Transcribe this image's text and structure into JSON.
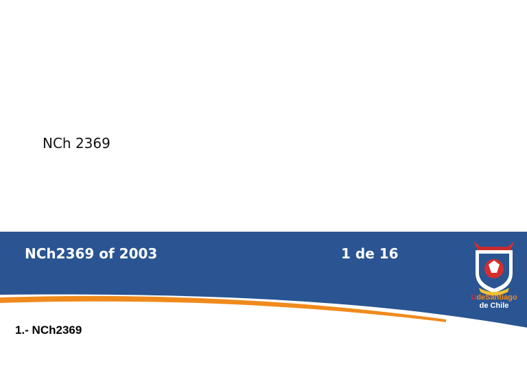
{
  "document": {
    "title": "NCh 2369"
  },
  "banner": {
    "title": "NCh2369 of 2003",
    "page_counter": "1 de 16",
    "background_color": "#2a5592",
    "stripe_color": "#f08a1c"
  },
  "logo": {
    "name_u": "U",
    "name_de_santiago": "deSantiago",
    "name_line2": "de Chile"
  },
  "section": {
    "heading": "1.- NCh2369"
  }
}
